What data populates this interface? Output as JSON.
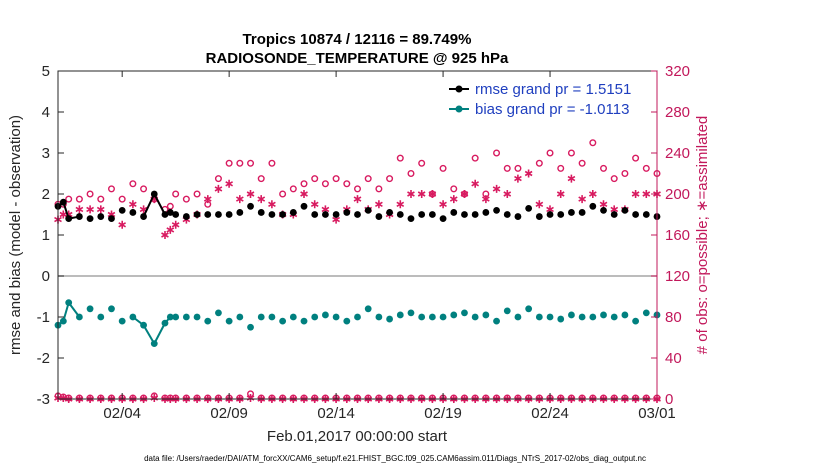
{
  "chart_data": {
    "type": "line",
    "title": "Tropics 10874 / 12116 = 89.749%",
    "subtitle": "RADIOSONDE_TEMPERATURE @ 925 hPa",
    "xlabel": "Feb.01,2017 00:00:00 start",
    "ylabel": "rmse and bias (model - observation)",
    "y2label": "# of obs: o=possible; ∗=assimilated",
    "x_range": [
      0,
      28
    ],
    "ylim": [
      -3,
      5
    ],
    "y2lim": [
      0,
      320
    ],
    "x_ticks": [
      {
        "x": 3,
        "label": "02/04"
      },
      {
        "x": 8,
        "label": "02/09"
      },
      {
        "x": 13,
        "label": "02/14"
      },
      {
        "x": 18,
        "label": "02/19"
      },
      {
        "x": 23,
        "label": "02/24"
      },
      {
        "x": 28,
        "label": "03/01"
      }
    ],
    "y_ticks": [
      -3,
      -2,
      -1,
      0,
      1,
      2,
      3,
      4,
      5
    ],
    "y2_ticks": [
      0,
      40,
      80,
      120,
      160,
      200,
      240,
      280,
      320
    ],
    "legend": {
      "position": "top-right",
      "entries": [
        "rmse grand pr = 1.5151",
        "bias grand pr = -1.0113"
      ]
    },
    "x": [
      0.0,
      0.25,
      0.5,
      1.0,
      1.5,
      2.0,
      2.5,
      3.0,
      3.5,
      4.0,
      4.5,
      5.0,
      5.25,
      5.5,
      6.0,
      6.5,
      7.0,
      7.5,
      8.0,
      8.5,
      9.0,
      9.5,
      10.0,
      10.5,
      11.0,
      11.5,
      12.0,
      12.5,
      13.0,
      13.5,
      14.0,
      14.5,
      15.0,
      15.5,
      16.0,
      16.5,
      17.0,
      17.5,
      18.0,
      18.5,
      19.0,
      19.5,
      20.0,
      20.5,
      21.0,
      21.5,
      22.0,
      22.5,
      23.0,
      23.5,
      24.0,
      24.5,
      25.0,
      25.5,
      26.0,
      26.5,
      27.0,
      27.5,
      28.0
    ],
    "series": [
      {
        "name": "rmse",
        "color": "#000000",
        "values": [
          1.7,
          1.8,
          1.4,
          1.45,
          1.4,
          1.45,
          1.4,
          1.6,
          1.55,
          1.45,
          2.0,
          1.5,
          1.55,
          1.5,
          1.45,
          1.5,
          1.5,
          1.5,
          1.5,
          1.55,
          1.7,
          1.55,
          1.5,
          1.5,
          1.55,
          1.7,
          1.5,
          1.5,
          1.5,
          1.55,
          1.5,
          1.6,
          1.45,
          1.55,
          1.5,
          1.4,
          1.5,
          1.5,
          1.4,
          1.55,
          1.5,
          1.5,
          1.55,
          1.6,
          1.5,
          1.45,
          1.65,
          1.45,
          1.5,
          1.5,
          1.55,
          1.55,
          1.7,
          1.6,
          1.5,
          1.6,
          1.5,
          1.5,
          1.45
        ]
      },
      {
        "name": "bias",
        "color": "#00807f",
        "values": [
          -1.2,
          -1.1,
          -0.65,
          -1.0,
          -0.8,
          -1.0,
          -0.8,
          -1.1,
          -1.0,
          -1.2,
          -1.65,
          -1.15,
          -1.0,
          -1.0,
          -1.0,
          -1.0,
          -1.1,
          -0.9,
          -1.1,
          -1.0,
          -1.25,
          -1.0,
          -1.0,
          -1.1,
          -1.0,
          -1.1,
          -1.0,
          -0.95,
          -1.0,
          -1.1,
          -1.0,
          -0.8,
          -1.0,
          -1.05,
          -0.95,
          -0.9,
          -1.0,
          -1.0,
          -1.0,
          -0.95,
          -0.9,
          -1.0,
          -0.95,
          -1.1,
          -0.85,
          -1.0,
          -0.8,
          -1.0,
          -1.0,
          -1.05,
          -0.95,
          -1.0,
          -1.0,
          -0.95,
          -1.0,
          -0.95,
          -1.1,
          -0.9,
          -0.95
        ]
      },
      {
        "name": "possible",
        "color": "#d81b60",
        "axis": "right",
        "values": [
          190,
          190,
          195,
          195,
          200,
          195,
          205,
          195,
          210,
          205,
          195,
          185,
          188,
          200,
          195,
          200,
          190,
          215,
          230,
          230,
          230,
          215,
          230,
          200,
          205,
          210,
          215,
          210,
          215,
          210,
          205,
          215,
          205,
          215,
          235,
          220,
          230,
          200,
          225,
          205,
          200,
          235,
          200,
          240,
          225,
          225,
          285,
          230,
          240,
          225,
          240,
          230,
          250,
          225,
          215,
          220,
          235,
          225,
          220
        ]
      },
      {
        "name": "assimilated",
        "color": "#d81b60",
        "axis": "right",
        "values": [
          175,
          180,
          180,
          185,
          185,
          185,
          180,
          170,
          190,
          185,
          195,
          160,
          165,
          170,
          175,
          180,
          195,
          205,
          210,
          195,
          200,
          195,
          190,
          180,
          180,
          200,
          190,
          185,
          175,
          185,
          195,
          185,
          190,
          180,
          190,
          200,
          200,
          200,
          190,
          195,
          200,
          210,
          195,
          205,
          200,
          215,
          220,
          190,
          185,
          200,
          215,
          195,
          200,
          190,
          185,
          185,
          200,
          200,
          200
        ]
      },
      {
        "name": "possible-bottom",
        "color": "#d81b60",
        "axis": "right",
        "values": [
          3,
          2,
          1,
          1,
          1,
          1,
          1,
          1,
          1,
          1,
          3,
          1,
          1,
          1,
          1,
          1,
          1,
          1,
          1,
          1,
          5,
          1,
          1,
          1,
          1,
          1,
          1,
          1,
          1,
          1,
          1,
          1,
          1,
          1,
          1,
          1,
          1,
          1,
          1,
          1,
          1,
          1,
          1,
          1,
          1,
          1,
          1,
          1,
          1,
          1,
          1,
          1,
          1,
          1,
          1,
          1,
          1,
          1,
          1
        ]
      },
      {
        "name": "assimilated-bottom",
        "color": "#d81b60",
        "axis": "right",
        "values": [
          1,
          1,
          0,
          0,
          0,
          0,
          0,
          0,
          0,
          0,
          1,
          0,
          0,
          0,
          0,
          0,
          0,
          0,
          0,
          0,
          1,
          0,
          0,
          0,
          0,
          0,
          0,
          0,
          0,
          0,
          0,
          0,
          0,
          0,
          0,
          0,
          0,
          0,
          0,
          0,
          0,
          0,
          0,
          0,
          0,
          0,
          0,
          0,
          0,
          0,
          0,
          0,
          0,
          0,
          0,
          0,
          0,
          0,
          0
        ]
      }
    ],
    "grid": false,
    "footnote": "data file: /Users/raeder/DAI/ATM_forcXX/CAM6_setup/f.e21.FHIST_BGC.f09_025.CAM6assim.011/Diags_NTrS_2017-02/obs_diag_output.nc"
  }
}
